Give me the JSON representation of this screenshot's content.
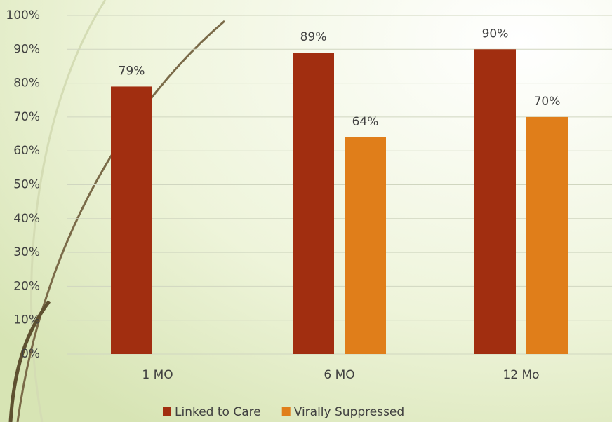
{
  "chart_data": {
    "type": "bar",
    "categories": [
      "1 MO",
      "6 MO",
      "12 Mo"
    ],
    "series": [
      {
        "name": "Linked to Care",
        "color": "#a12e10",
        "values": [
          79,
          89,
          90
        ],
        "value_labels": [
          "79%",
          "89%",
          "90%"
        ]
      },
      {
        "name": "Virally Suppressed",
        "color": "#e07e1a",
        "values": [
          null,
          64,
          70
        ],
        "value_labels": [
          null,
          "64%",
          "70%"
        ]
      }
    ],
    "ylim": [
      0,
      100
    ],
    "yticks": [
      {
        "value": 0,
        "label": "0%"
      },
      {
        "value": 10,
        "label": "10%"
      },
      {
        "value": 20,
        "label": "20%"
      },
      {
        "value": 30,
        "label": "30%"
      },
      {
        "value": 40,
        "label": "40%"
      },
      {
        "value": 50,
        "label": "50%"
      },
      {
        "value": 60,
        "label": "60%"
      },
      {
        "value": 70,
        "label": "70%"
      },
      {
        "value": 80,
        "label": "80%"
      },
      {
        "value": 90,
        "label": "90%"
      },
      {
        "value": 100,
        "label": "100%"
      }
    ],
    "grid": true,
    "legend": "bottom"
  }
}
